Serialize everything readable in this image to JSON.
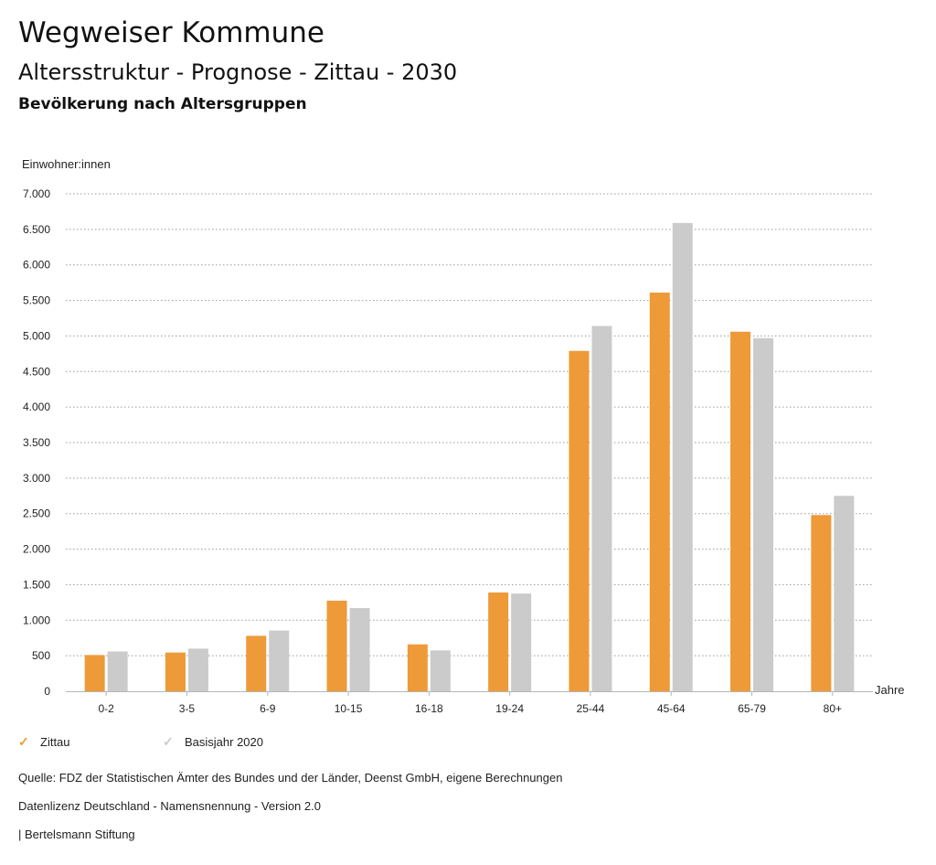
{
  "header": {
    "title": "Wegweiser Kommune",
    "subtitle": "Altersstruktur - Prognose - Zittau - 2030",
    "section": "Bevölkerung nach Altersgruppen"
  },
  "chart_data": {
    "type": "bar",
    "ylabel": "Einwohner:innen",
    "xlabel": "Jahre",
    "ylim": [
      0,
      7000
    ],
    "yticks": [
      0,
      500,
      1000,
      1500,
      2000,
      2500,
      3000,
      3500,
      4000,
      4500,
      5000,
      5500,
      6000,
      6500,
      7000
    ],
    "ytick_labels": [
      "0",
      "500",
      "1.000",
      "1.500",
      "2.000",
      "2.500",
      "3.000",
      "3.500",
      "4.000",
      "4.500",
      "5.000",
      "5.500",
      "6.000",
      "6.500",
      "7.000"
    ],
    "grid": true,
    "categories": [
      "0-2",
      "3-5",
      "6-9",
      "10-15",
      "16-18",
      "19-24",
      "25-44",
      "45-64",
      "65-79",
      "80+"
    ],
    "series": [
      {
        "name": "Zittau",
        "color": "#EE9A38",
        "values": [
          510,
          545,
          780,
          1275,
          660,
          1390,
          4790,
          5610,
          5060,
          2480
        ]
      },
      {
        "name": "Basisjahr 2020",
        "color": "#CBCBCB",
        "values": [
          560,
          600,
          855,
          1170,
          575,
          1375,
          5140,
          6590,
          4970,
          2750
        ]
      }
    ]
  },
  "legend": {
    "items": [
      {
        "label": "Zittau",
        "color": "#EE9A38",
        "icon": "check-icon"
      },
      {
        "label": "Basisjahr 2020",
        "color": "#CBCBCB",
        "icon": "check-icon"
      }
    ]
  },
  "footer": {
    "source": "Quelle: FDZ der Statistischen Ämter des Bundes und der Länder, Deenst GmbH, eigene Berechnungen",
    "license": "Datenlizenz Deutschland - Namensnennung - Version 2.0",
    "publisher": "| Bertelsmann Stiftung"
  }
}
